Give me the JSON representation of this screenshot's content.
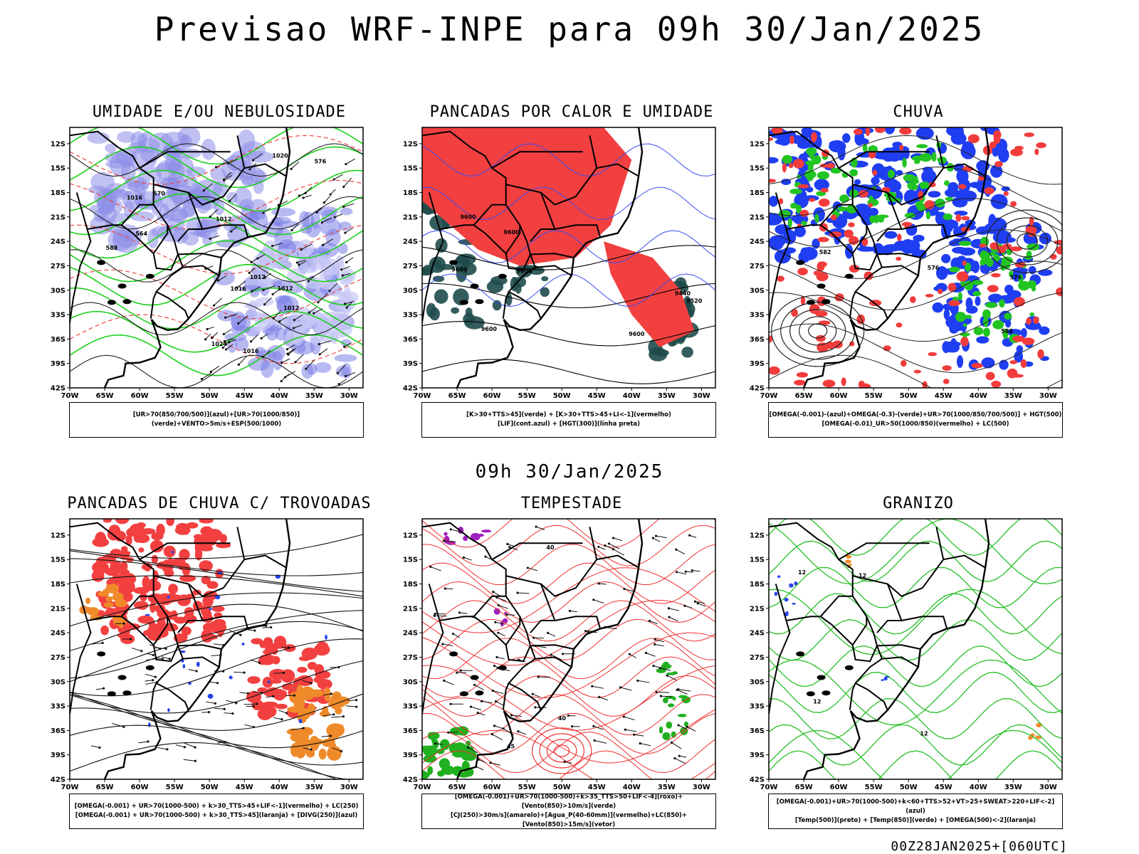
{
  "header": {
    "title": "Previsao WRF-INPE  para 09h 30/Jan/2025"
  },
  "mid_date": "09h 30/Jan/2025",
  "footer": "00Z28JAN2025+[060UTC]",
  "axes": {
    "lat_labels": [
      "12S",
      "15S",
      "18S",
      "21S",
      "24S",
      "27S",
      "30S",
      "33S",
      "36S",
      "39S",
      "42S"
    ],
    "lon_labels": [
      "70W",
      "65W",
      "60W",
      "55W",
      "50W",
      "45W",
      "40W",
      "35W",
      "30W"
    ]
  },
  "panels": [
    {
      "title": "UMIDADE E/OU NEBULOSIDADE",
      "legend": [
        "[UR>70(850/700/500)](azul)+[UR>70(1000/850)](verde)+VENTO>5m/s+ESP(500/1000)"
      ],
      "contour_labels": [
        "1012",
        "1012",
        "1012",
        "1016",
        "1016",
        "1020",
        "1024",
        "576",
        "570",
        "564",
        "588",
        "1016",
        "1012"
      ]
    },
    {
      "title": "PANCADAS POR CALOR E UMIDADE",
      "legend": [
        "[K>30+TTS>45](verde) + [K>30+TTS>45+LI<-1](vermelho)",
        "[LIF](cont.azul) + [HGT(300)](linha preta)"
      ],
      "contour_labels": [
        "9600",
        "9600",
        "9600",
        "9600",
        "9520",
        "9440",
        "9600",
        "9600"
      ]
    },
    {
      "title": "CHUVA",
      "legend": [
        "[OMEGA(-0.001)-(azul)+OMEGA(-0.3)-(verde)+UR>70(1000/850/700/500)] + HGT(500)",
        "[OMEGA(-0.01)_UR>50(1000/850)(vermelho) + LC(500)"
      ],
      "contour_labels": [
        "582",
        "588",
        "576",
        "576"
      ]
    },
    {
      "title": "PANCADAS DE CHUVA C/ TROVOADAS",
      "legend": [
        "[OMEGA(-0.001) + UR>70(1000-500) + k>30_TTS>45+LIF<-1](vermelho) + LC(250)",
        "[OMEGA(-0.001) + UR>70(1000-500) + k>30_TTS>45](laranja) + [DIVG(250)](azul)"
      ],
      "contour_labels": []
    },
    {
      "title": "TEMPESTADE",
      "legend": [
        "[OMEGA(-0.001)+UR>70(1000-500)+k>35_TTS>50+LIF<-4](roxo)+[Vento(850)>10m/s](verde)",
        "[CJ(250)>30m/s](amarelo)+[Agua_P(40-60mm)](vermelho)+LC(850)+[Vento(850)>15m/s](vetor)"
      ],
      "contour_labels": [
        "40",
        "45",
        "40"
      ]
    },
    {
      "title": "GRANIZO",
      "legend": [
        "[OMEGA(-0.001)+UR>70(1000-500)+k<60+TTS>52+VT>25+SWEAT>220+LIF<-2](azul)",
        "[Temp(500)](preto) + [Temp(850)](verde) + [OMEGA(500)<-2](laranja)"
      ],
      "contour_labels": [
        "12",
        "12",
        "12",
        "12"
      ]
    }
  ]
}
